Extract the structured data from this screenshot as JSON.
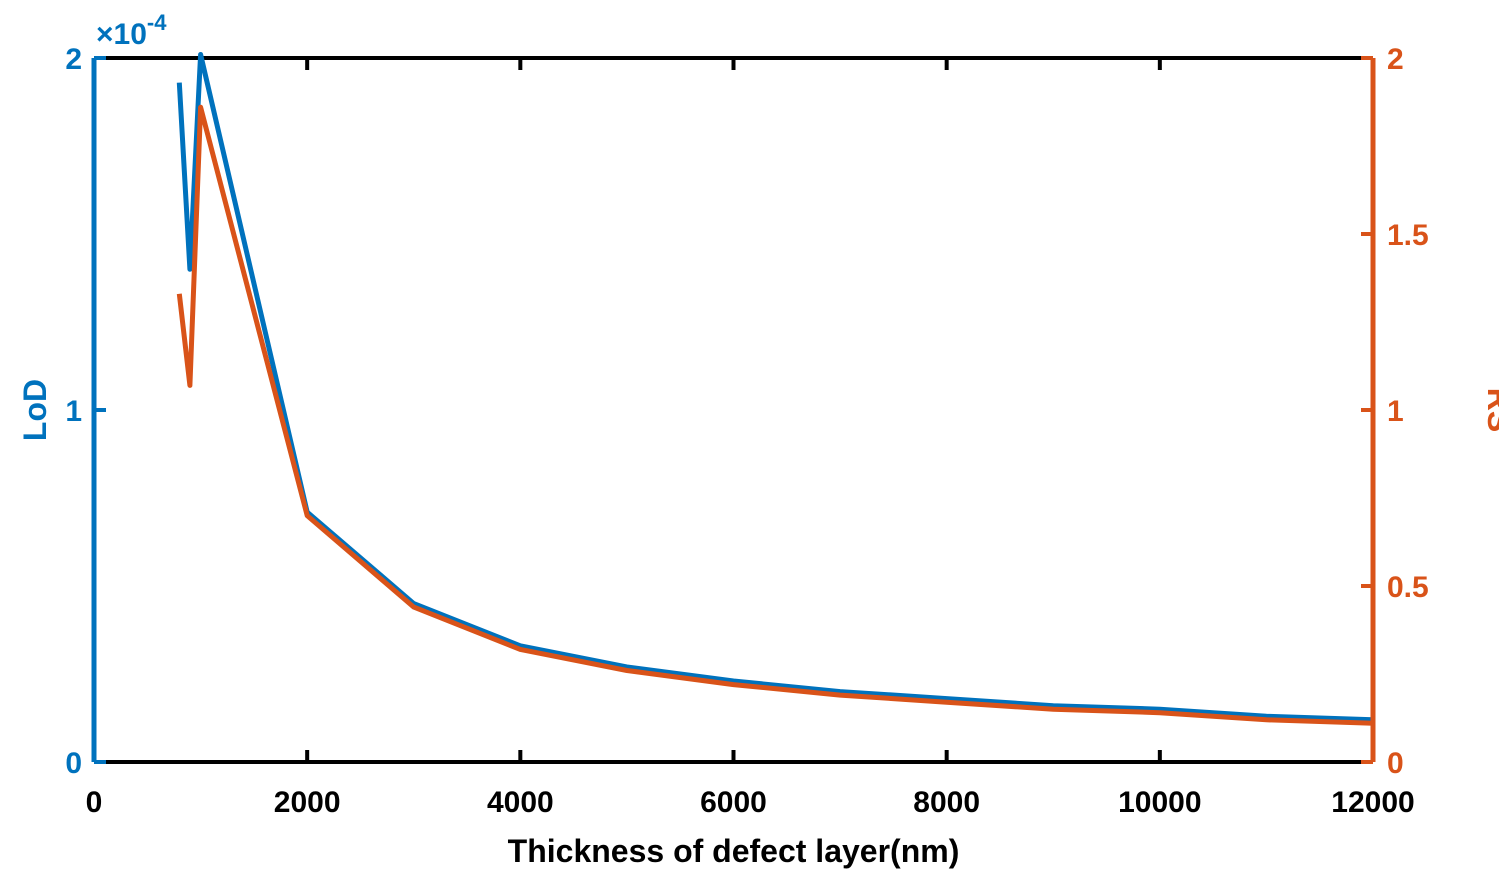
{
  "chart_data": {
    "type": "line",
    "xlabel": "Thickness of defect layer(nm)",
    "ylabel_left": "LoD",
    "ylabel_right": "RS",
    "left_axis_exponent": "-4",
    "left_axis_multiplier": "×10",
    "xlim": [
      0,
      12000
    ],
    "ylim_left": [
      0,
      2
    ],
    "ylim_right": [
      0,
      2
    ],
    "x_ticks": [
      "0",
      "2000",
      "4000",
      "6000",
      "8000",
      "10000",
      "12000"
    ],
    "y_left_ticks": [
      "0",
      "1",
      "2"
    ],
    "y_right_ticks": [
      "0",
      "0.5",
      "1",
      "1.5",
      "2"
    ],
    "colors": {
      "left": "#0072BD",
      "right": "#D95319",
      "frame": "#000000"
    },
    "series": [
      {
        "axis": "left",
        "x": [
          800,
          900,
          1000,
          2000,
          3000,
          4000,
          5000,
          6000,
          7000,
          8000,
          9000,
          10000,
          11000,
          12000
        ],
        "y": [
          1.93,
          1.4,
          2.01,
          0.71,
          0.45,
          0.33,
          0.27,
          0.23,
          0.2,
          0.18,
          0.16,
          0.15,
          0.13,
          0.12
        ]
      },
      {
        "axis": "right",
        "x": [
          800,
          900,
          1000,
          2000,
          3000,
          4000,
          5000,
          6000,
          7000,
          8000,
          9000,
          10000,
          11000,
          12000
        ],
        "y": [
          1.33,
          1.07,
          1.86,
          0.7,
          0.44,
          0.32,
          0.26,
          0.22,
          0.19,
          0.17,
          0.15,
          0.14,
          0.12,
          0.11
        ]
      }
    ]
  }
}
